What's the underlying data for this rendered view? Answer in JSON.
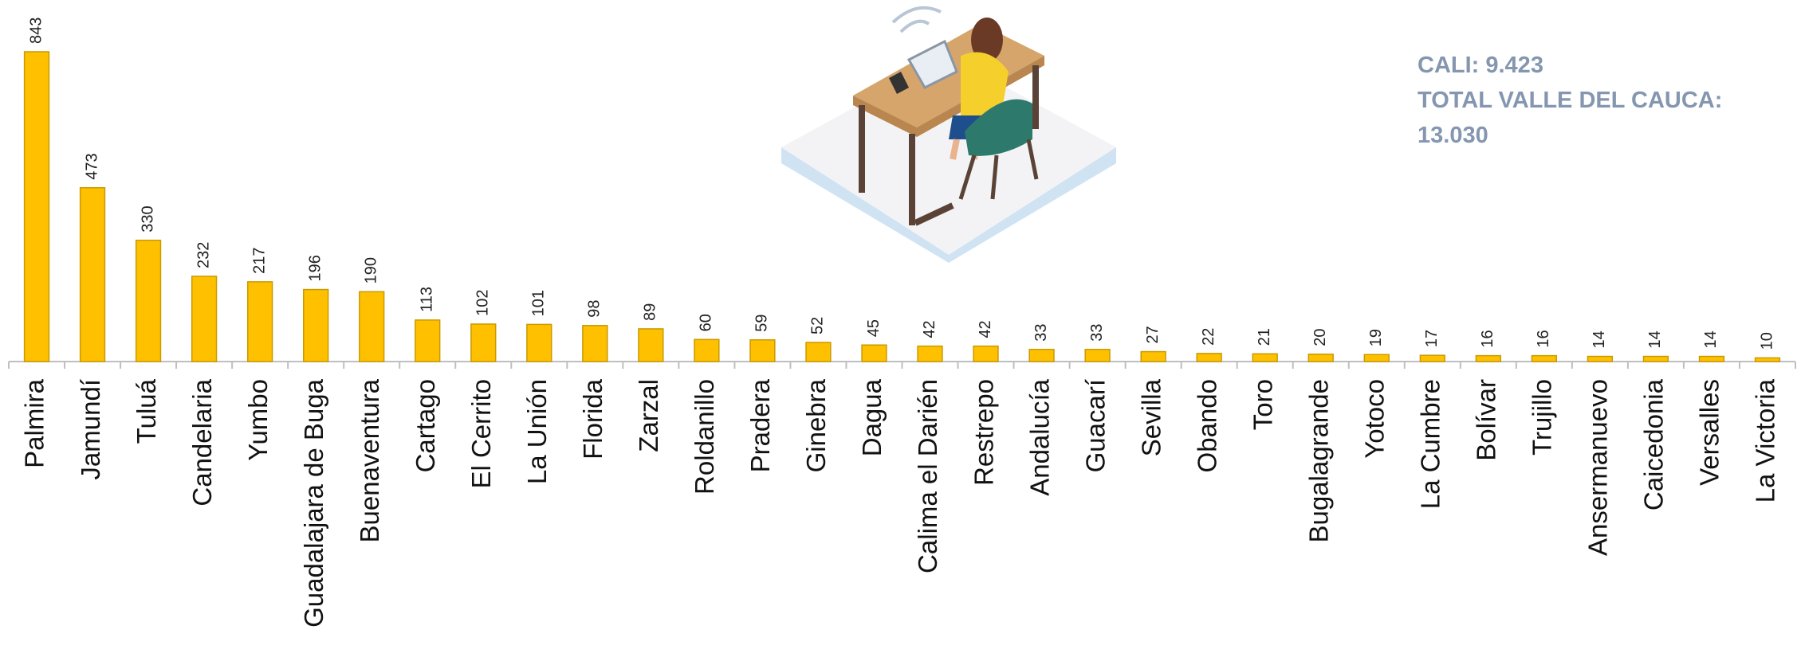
{
  "chart_data": {
    "type": "bar",
    "categories": [
      "Palmira",
      "Jamundí",
      "Tuluá",
      "Candelaria",
      "Yumbo",
      "Guadalajara de Buga",
      "Buenaventura",
      "Cartago",
      "El Cerrito",
      "La Unión",
      "Florida",
      "Zarzal",
      "Roldanillo",
      "Pradera",
      "Ginebra",
      "Dagua",
      "Calima el Darién",
      "Restrepo",
      "Andalucía",
      "Guacarí",
      "Sevilla",
      "Obando",
      "Toro",
      "Bugalagrande",
      "Yotoco",
      "La Cumbre",
      "Bolívar",
      "Trujillo",
      "Ansermanuevo",
      "Caicedonia",
      "Versalles",
      "La Victoria"
    ],
    "values": [
      843,
      473,
      330,
      232,
      217,
      196,
      190,
      113,
      102,
      101,
      98,
      89,
      60,
      59,
      52,
      45,
      42,
      42,
      33,
      33,
      27,
      22,
      21,
      20,
      19,
      17,
      16,
      16,
      14,
      14,
      14,
      10
    ],
    "color": "#ffc000",
    "annotations": [
      "CALI: 9.423",
      "TOTAL VALLE DEL CAUCA: 13.030"
    ]
  }
}
